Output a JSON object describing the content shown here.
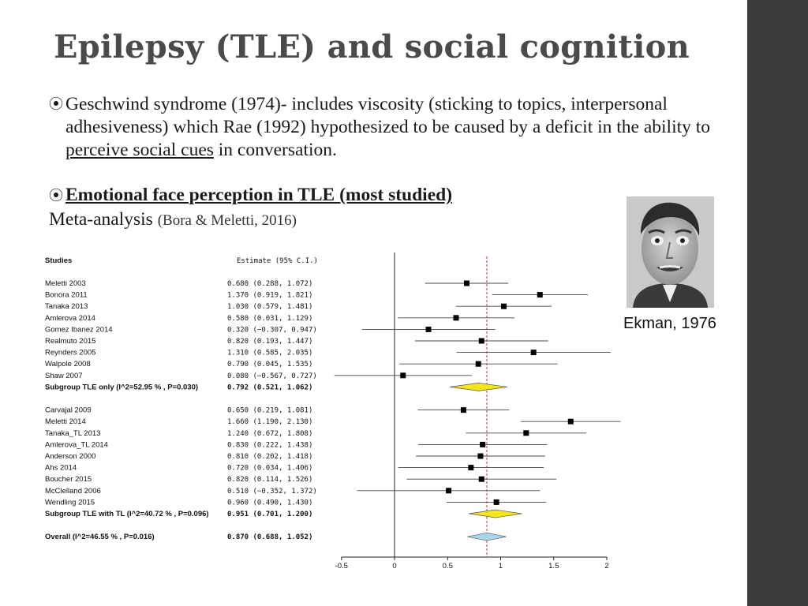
{
  "slide": {
    "title": "Epilepsy (TLE) and social cognition",
    "bullet_glyph": "⦿",
    "bullet1": {
      "part1": "Geschwind syndrome (1974)- includes viscosity (sticking to topics, interpersonal adhesiveness) which Rae (1992) hypothesized to be caused by a deficit in the ability to ",
      "underlined": "perceive social cues",
      "part2": " in conversation."
    },
    "bullet2": {
      "heading": "Emotional face perception in TLE (most studied)"
    },
    "subline": {
      "main": "Meta-analysis",
      "citation": "(Bora & Meletti, 2016)"
    },
    "photo_caption": "Ekman, 1976",
    "colors": {
      "sidebar": "#3b3b3b",
      "title": "#4a4a4a",
      "subgroup_diamond": "#f5e61a",
      "overall_diamond": "#a8d8e8",
      "ref_line": "#cc3333"
    }
  },
  "chart_data": {
    "type": "forest",
    "header_study": "Studies",
    "header_estimate": "Estimate (95% C.I.)",
    "xlim": [
      -0.5,
      2
    ],
    "x_ticks": [
      "-0.5",
      "0",
      "0.5",
      "1",
      "1.5",
      "2"
    ],
    "reference_line": 0.87,
    "groups": [
      {
        "studies": [
          {
            "name": "Meletti 2003",
            "est": 0.68,
            "lo": 0.288,
            "hi": 1.072,
            "text": "0.680  (0.288, 1.072)"
          },
          {
            "name": "Bonora   2011",
            "est": 1.37,
            "lo": 0.919,
            "hi": 1.821,
            "text": "1.370  (0.919, 1.821)"
          },
          {
            "name": "Tanaka 2013",
            "est": 1.03,
            "lo": 0.579,
            "hi": 1.481,
            "text": "1.030  (0.579, 1.481)"
          },
          {
            "name": "Amlerova 2014",
            "est": 0.58,
            "lo": 0.031,
            "hi": 1.129,
            "text": "0.580  (0.031, 1.129)"
          },
          {
            "name": "Gomez Ibanez  2014",
            "est": 0.32,
            "lo": -0.307,
            "hi": 0.947,
            "text": "0.320 (−0.307, 0.947)"
          },
          {
            "name": "Realmuto  2015",
            "est": 0.82,
            "lo": 0.193,
            "hi": 1.447,
            "text": "0.820  (0.193, 1.447)"
          },
          {
            "name": "Reynders  2005",
            "est": 1.31,
            "lo": 0.585,
            "hi": 2.035,
            "text": "1.310  (0.585, 2.035)"
          },
          {
            "name": "Walpole   2008",
            "est": 0.79,
            "lo": 0.045,
            "hi": 1.535,
            "text": "0.790  (0.045, 1.535)"
          },
          {
            "name": "Shaw 2007",
            "est": 0.08,
            "lo": -0.567,
            "hi": 0.727,
            "text": "0.080 (−0.567, 0.727)"
          }
        ],
        "subgroup": {
          "name": "Subgroup TLE only (I^2=52.95 % , P=0.030)",
          "est": 0.792,
          "lo": 0.521,
          "hi": 1.062,
          "text": "0.792  (0.521, 1.062)"
        }
      },
      {
        "studies": [
          {
            "name": "Carvajal 2009",
            "est": 0.65,
            "lo": 0.219,
            "hi": 1.081,
            "text": "0.650  (0.219, 1.081)"
          },
          {
            "name": "Meletti 2014",
            "est": 1.66,
            "lo": 1.19,
            "hi": 2.13,
            "text": "1.660  (1.190, 2.130)"
          },
          {
            "name": "Tanaka_TL 2013",
            "est": 1.24,
            "lo": 0.672,
            "hi": 1.808,
            "text": "1.240  (0.672, 1.808)"
          },
          {
            "name": "Amlerova_TL 2014",
            "est": 0.83,
            "lo": 0.222,
            "hi": 1.438,
            "text": "0.830  (0.222, 1.438)"
          },
          {
            "name": "Anderson  2000",
            "est": 0.81,
            "lo": 0.202,
            "hi": 1.418,
            "text": "0.810  (0.202, 1.418)"
          },
          {
            "name": "Ahs 2014",
            "est": 0.72,
            "lo": 0.034,
            "hi": 1.406,
            "text": "0.720  (0.034, 1.406)"
          },
          {
            "name": "Boucher 2015",
            "est": 0.82,
            "lo": 0.114,
            "hi": 1.526,
            "text": "0.820  (0.114, 1.526)"
          },
          {
            "name": "McClelland 2006",
            "est": 0.51,
            "lo": -0.352,
            "hi": 1.372,
            "text": "0.510 (−0.352, 1.372)"
          },
          {
            "name": "Wendling 2015",
            "est": 0.96,
            "lo": 0.49,
            "hi": 1.43,
            "text": "0.960  (0.490, 1.430)"
          }
        ],
        "subgroup": {
          "name": "Subgroup TLE with TL (I^2=40.72 % , P=0.096)",
          "est": 0.951,
          "lo": 0.701,
          "hi": 1.2,
          "text": "0.951  (0.701, 1.200)"
        }
      }
    ],
    "overall": {
      "name": "Overall (I^2=46.55 % , P=0.016)",
      "est": 0.87,
      "lo": 0.688,
      "hi": 1.052,
      "text": "0.870  (0.688, 1.052)"
    }
  }
}
